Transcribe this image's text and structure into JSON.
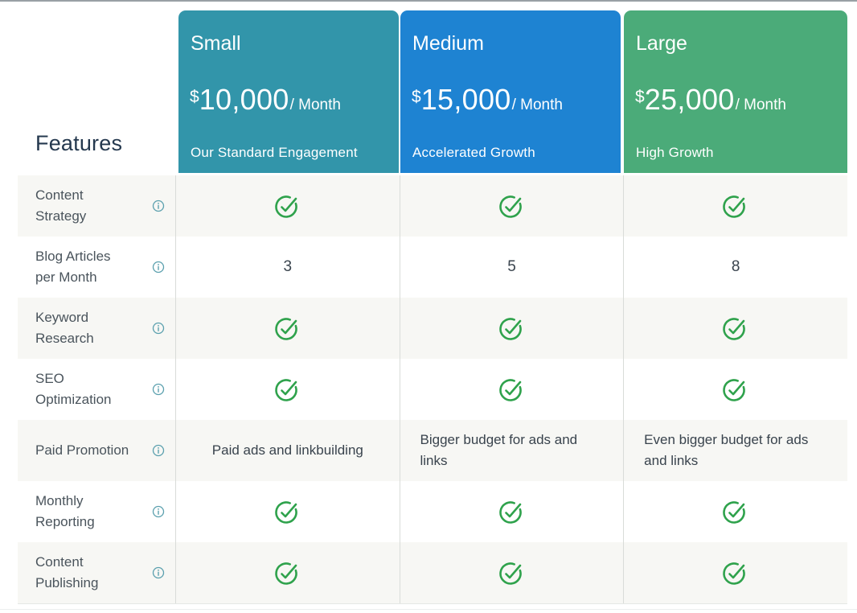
{
  "table": {
    "features_heading": "Features",
    "check_token": "check"
  },
  "plans": [
    {
      "name": "Small",
      "currency": "$",
      "price": "10,000",
      "period": "/ Month",
      "tagline": "Our Standard Engagement",
      "color": "#3295aa"
    },
    {
      "name": "Medium",
      "currency": "$",
      "price": "15,000",
      "period": "/ Month",
      "tagline": "Accelerated Growth",
      "color": "#1e83d2"
    },
    {
      "name": "Large",
      "currency": "$",
      "price": "25,000",
      "period": "/ Month",
      "tagline": "High Growth",
      "color": "#4bab79"
    }
  ],
  "features": [
    {
      "label": "Content Strategy",
      "values": [
        "check",
        "check",
        "check"
      ]
    },
    {
      "label": "Blog Articles per Month",
      "values": [
        "3",
        "5",
        "8"
      ]
    },
    {
      "label": "Keyword Research",
      "values": [
        "check",
        "check",
        "check"
      ]
    },
    {
      "label": "SEO Optimization",
      "values": [
        "check",
        "check",
        "check"
      ]
    },
    {
      "label": "Paid Promotion",
      "values": [
        "Paid ads and linkbuilding",
        "Bigger budget for ads and links",
        "Even bigger budget for ads and links"
      ]
    },
    {
      "label": "Monthly Reporting",
      "values": [
        "check",
        "check",
        "check"
      ]
    },
    {
      "label": "Content Publishing",
      "values": [
        "check",
        "check",
        "check"
      ]
    }
  ],
  "icons": {
    "check": "check-circle-icon",
    "info": "info-icon"
  },
  "colors": {
    "check_green": "#2fa24c",
    "info_icon": "#5ba0ae",
    "row_alt": "#f7f7f4",
    "divider": "#d9dcd9",
    "heading_text": "#24384e",
    "label_text": "#4a545c",
    "value_text": "#39434d"
  }
}
